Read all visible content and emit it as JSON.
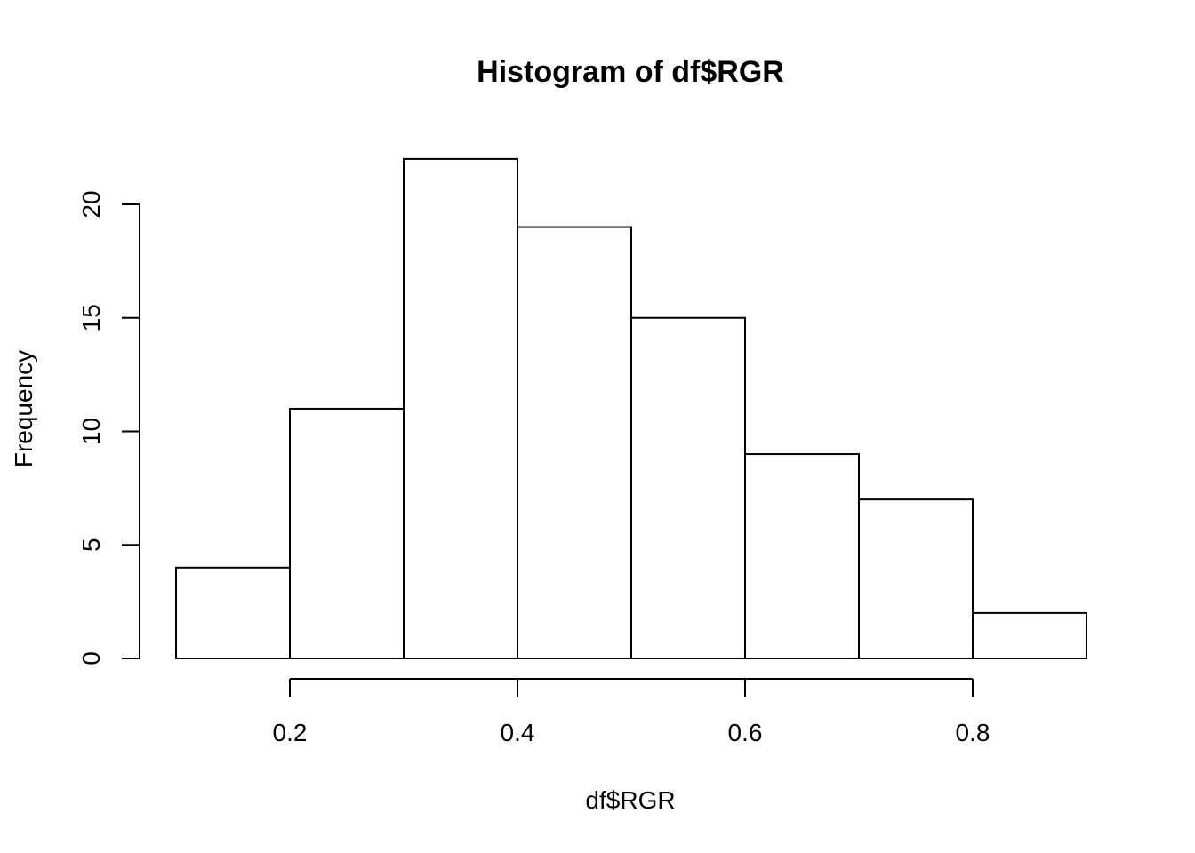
{
  "chart_data": {
    "type": "bar",
    "title": "Histogram of df$RGR",
    "xlabel": "df$RGR",
    "ylabel": "Frequency",
    "bins": [
      {
        "start": 0.1,
        "end": 0.2,
        "count": 4
      },
      {
        "start": 0.2,
        "end": 0.3,
        "count": 11
      },
      {
        "start": 0.3,
        "end": 0.4,
        "count": 22
      },
      {
        "start": 0.4,
        "end": 0.5,
        "count": 19
      },
      {
        "start": 0.5,
        "end": 0.6,
        "count": 15
      },
      {
        "start": 0.6,
        "end": 0.7,
        "count": 9
      },
      {
        "start": 0.7,
        "end": 0.8,
        "count": 7
      },
      {
        "start": 0.8,
        "end": 0.9,
        "count": 2
      }
    ],
    "x_ticks": [
      {
        "value": 0.2,
        "label": "0.2"
      },
      {
        "value": 0.4,
        "label": "0.4"
      },
      {
        "value": 0.6,
        "label": "0.6"
      },
      {
        "value": 0.8,
        "label": "0.8"
      }
    ],
    "y_ticks": [
      {
        "value": 0,
        "label": "0"
      },
      {
        "value": 5,
        "label": "5"
      },
      {
        "value": 10,
        "label": "10"
      },
      {
        "value": 15,
        "label": "15"
      },
      {
        "value": 20,
        "label": "20"
      }
    ],
    "xlim": [
      0.1,
      0.9
    ],
    "ylim": [
      0,
      22
    ],
    "grid": false
  }
}
